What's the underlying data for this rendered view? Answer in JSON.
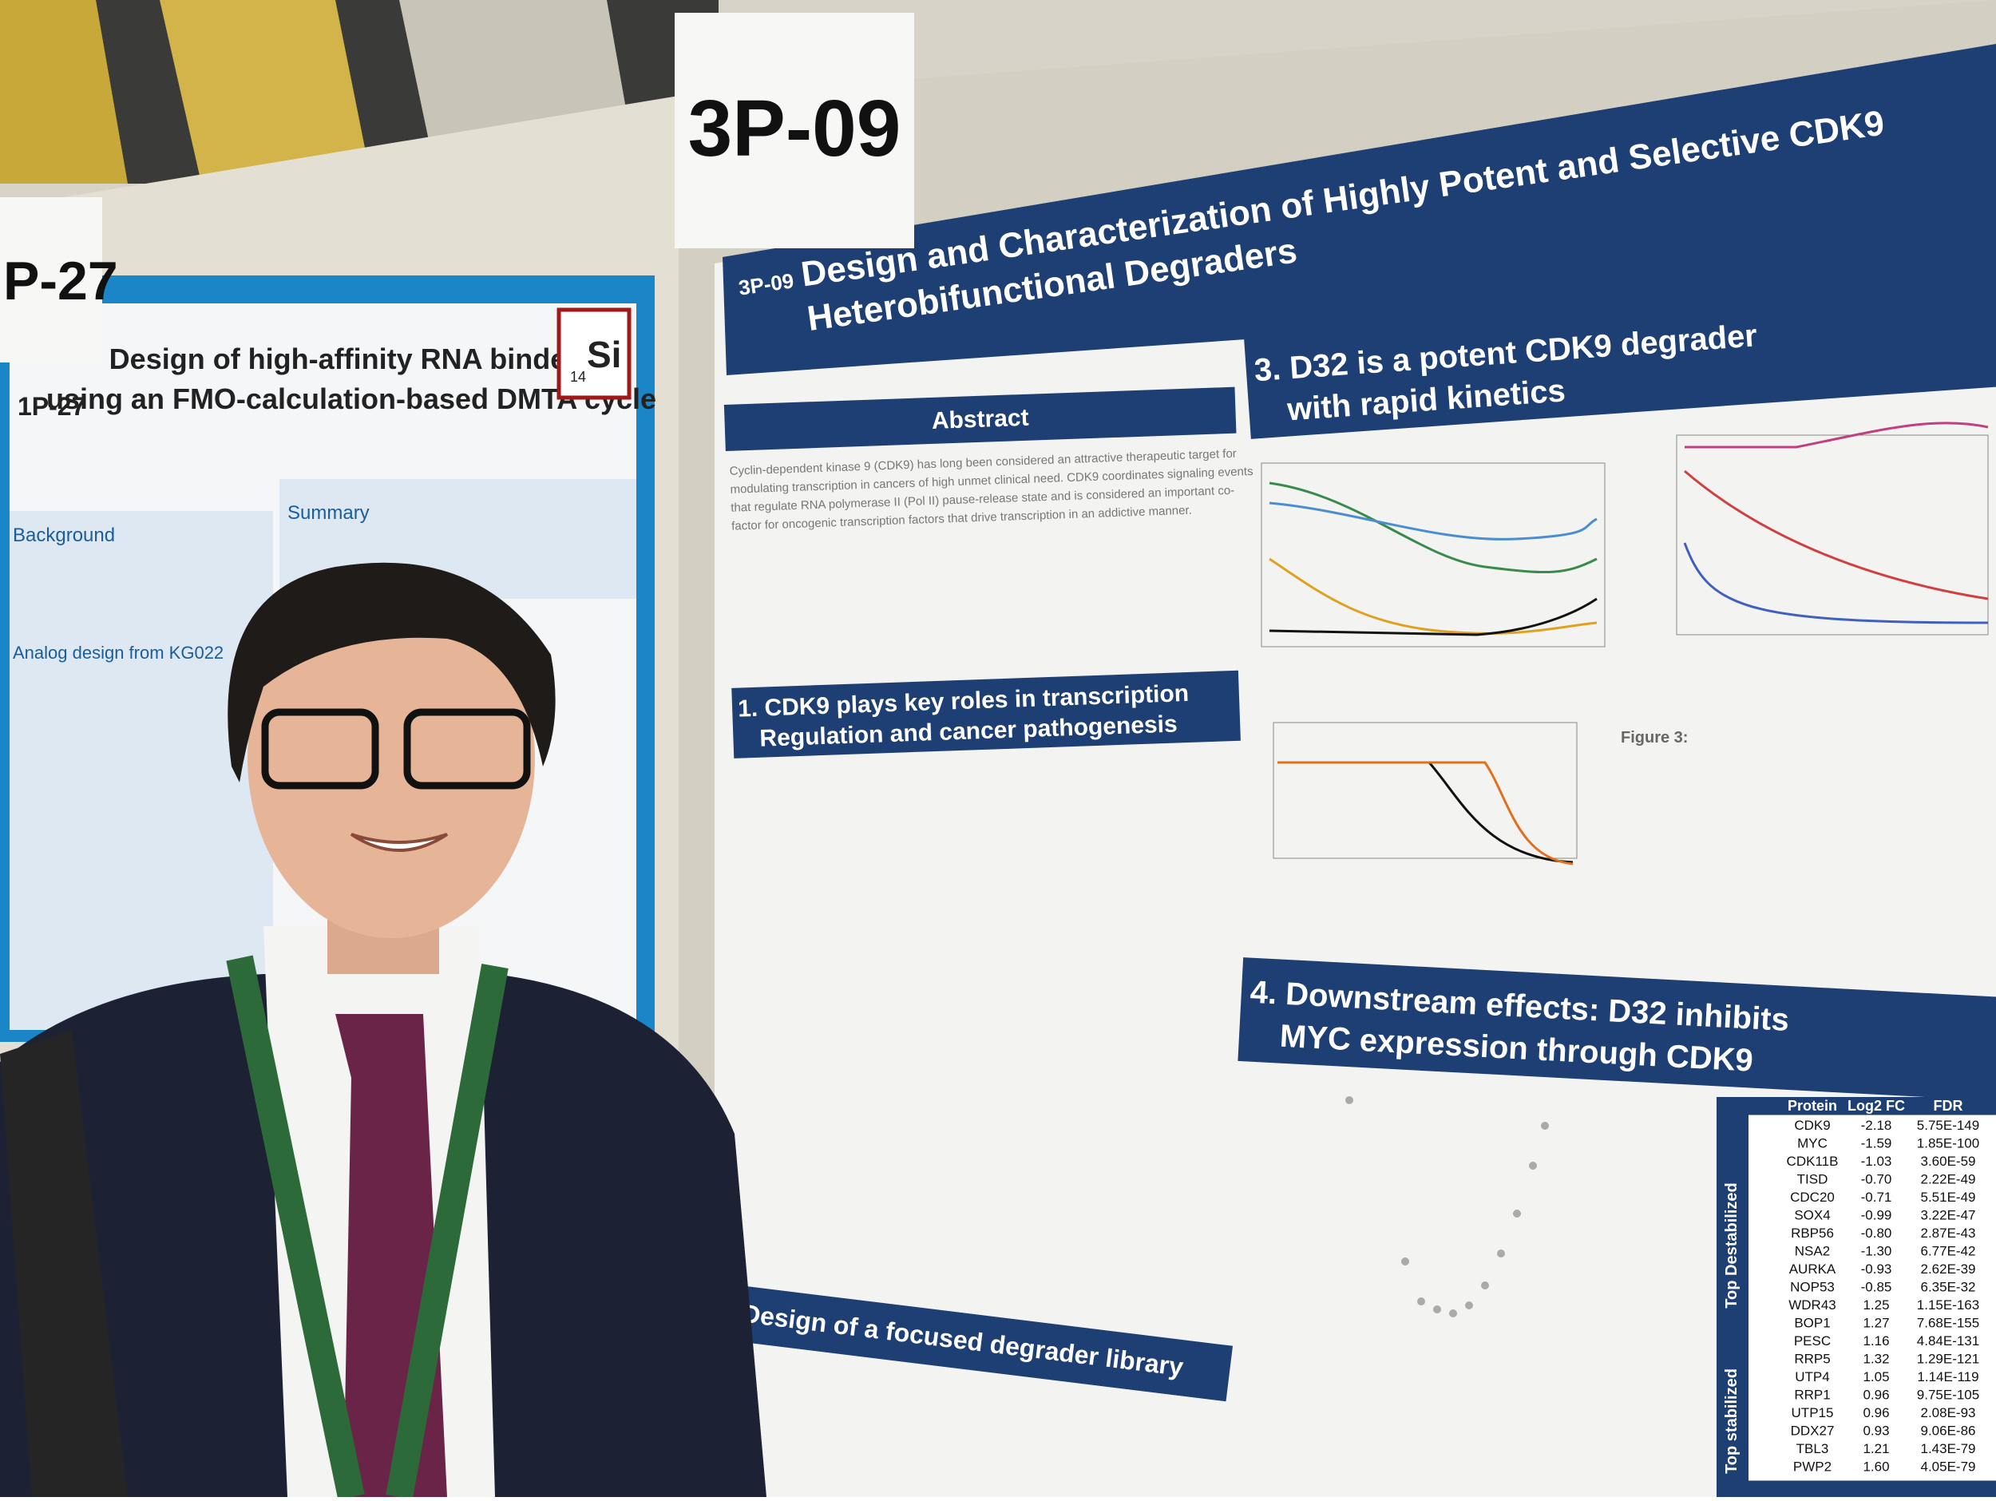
{
  "left_poster": {
    "card": "P-27",
    "number": "1P-27",
    "title_lines": [
      "Design of high-affinity RNA binders",
      "using an FMO-calculation-based DMTA cycle"
    ],
    "element_number": "14",
    "element_symbol": "Si",
    "sections": [
      "Background",
      "Summary",
      "Analog design from KG022"
    ]
  },
  "right_poster": {
    "card": "3P-09",
    "number": "3P-09",
    "title_lines": [
      "Design and Characterization of Highly Potent and Selective CDK9",
      "Heterobifunctional Degraders"
    ],
    "abstract_heading": "Abstract",
    "abstract_lines": [
      "Cyclin-dependent kinase 9 (CDK9) has long been considered an attractive therapeutic target for",
      "modulating transcription in cancers of high unmet clinical need. CDK9 coordinates signaling events",
      "that regulate RNA polymerase II (Pol II) pause-release state and is considered an important co-",
      "factor for oncogenic transcription factors that drive transcription in an addictive manner."
    ],
    "section1_lines": [
      "1. CDK9 plays key roles in transcription",
      "Regulation and cancer pathogenesis"
    ],
    "section3_lines": [
      "3. D32 is a potent CDK9 degrader",
      "with rapid kinetics"
    ],
    "section4_lines": [
      "4. Downstream effects: D32 inhibits",
      "MYC expression through CDK9"
    ],
    "section2_heading": "Design of a focused degrader library",
    "figure3_caption": "Figure 3:",
    "table": {
      "header": [
        "Protein",
        "Log2 FC",
        "FDR"
      ],
      "group_top": "Top Destabilized",
      "group_bottom": "Top stabilized",
      "rows": [
        [
          "CDK9",
          "-2.18",
          "5.75E-149"
        ],
        [
          "MYC",
          "-1.59",
          "1.85E-100"
        ],
        [
          "CDK11B",
          "-1.03",
          "3.60E-59"
        ],
        [
          "TISD",
          "-0.70",
          "2.22E-49"
        ],
        [
          "CDC20",
          "-0.71",
          "5.51E-49"
        ],
        [
          "SOX4",
          "-0.99",
          "3.22E-47"
        ],
        [
          "RBP56",
          "-0.80",
          "2.87E-43"
        ],
        [
          "NSA2",
          "-1.30",
          "6.77E-42"
        ],
        [
          "AURKA",
          "-0.93",
          "2.62E-39"
        ],
        [
          "NOP53",
          "-0.85",
          "6.35E-32"
        ],
        [
          "WDR43",
          "1.25",
          "1.15E-163"
        ],
        [
          "BOP1",
          "1.27",
          "7.68E-155"
        ],
        [
          "PESC",
          "1.16",
          "4.84E-131"
        ],
        [
          "RRP5",
          "1.32",
          "1.29E-121"
        ],
        [
          "UTP4",
          "1.05",
          "1.14E-119"
        ],
        [
          "RRP1",
          "0.96",
          "9.75E-105"
        ],
        [
          "UTP15",
          "0.96",
          "2.08E-93"
        ],
        [
          "DDX27",
          "0.93",
          "9.06E-86"
        ],
        [
          "TBL3",
          "1.21",
          "1.43E-79"
        ],
        [
          "PWP2",
          "1.60",
          "4.05E-79"
        ]
      ]
    }
  }
}
